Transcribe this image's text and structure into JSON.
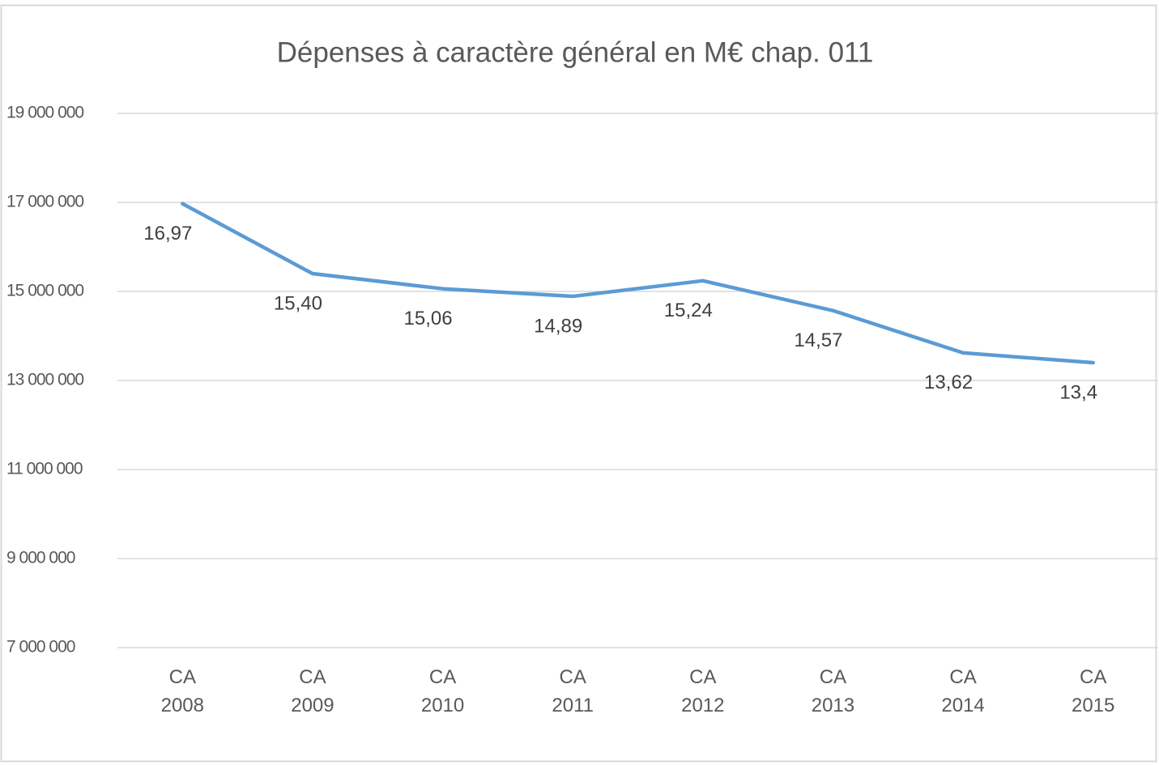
{
  "chart_data": {
    "type": "line",
    "title": "Dépenses à caractère général en M€ chap. 011",
    "categories": [
      "CA 2008",
      "CA 2009",
      "CA 2010",
      "CA 2011",
      "CA 2012",
      "CA 2013",
      "CA 2014",
      "CA 2015"
    ],
    "series": [
      {
        "name": "Dépenses à caractère général",
        "color": "#5b9bd5",
        "values": [
          16970000,
          15400000,
          15060000,
          14890000,
          15240000,
          14570000,
          13620000,
          13400000
        ],
        "value_labels": [
          "16,97",
          "15,40",
          "15,06",
          "14,89",
          "15,24",
          "14,57",
          "13,62",
          "13,4"
        ]
      }
    ],
    "ylim": [
      7000000,
      19000000
    ],
    "yticks": [
      {
        "value": 7000000,
        "label": "7 000 000"
      },
      {
        "value": 9000000,
        "label": "9 000 000"
      },
      {
        "value": 11000000,
        "label": "11 000 000"
      },
      {
        "value": 13000000,
        "label": "13 000 000"
      },
      {
        "value": 15000000,
        "label": "15 000 000"
      },
      {
        "value": 17000000,
        "label": "17 000 000"
      },
      {
        "value": 19000000,
        "label": "19 000 000"
      }
    ],
    "grid": true
  }
}
